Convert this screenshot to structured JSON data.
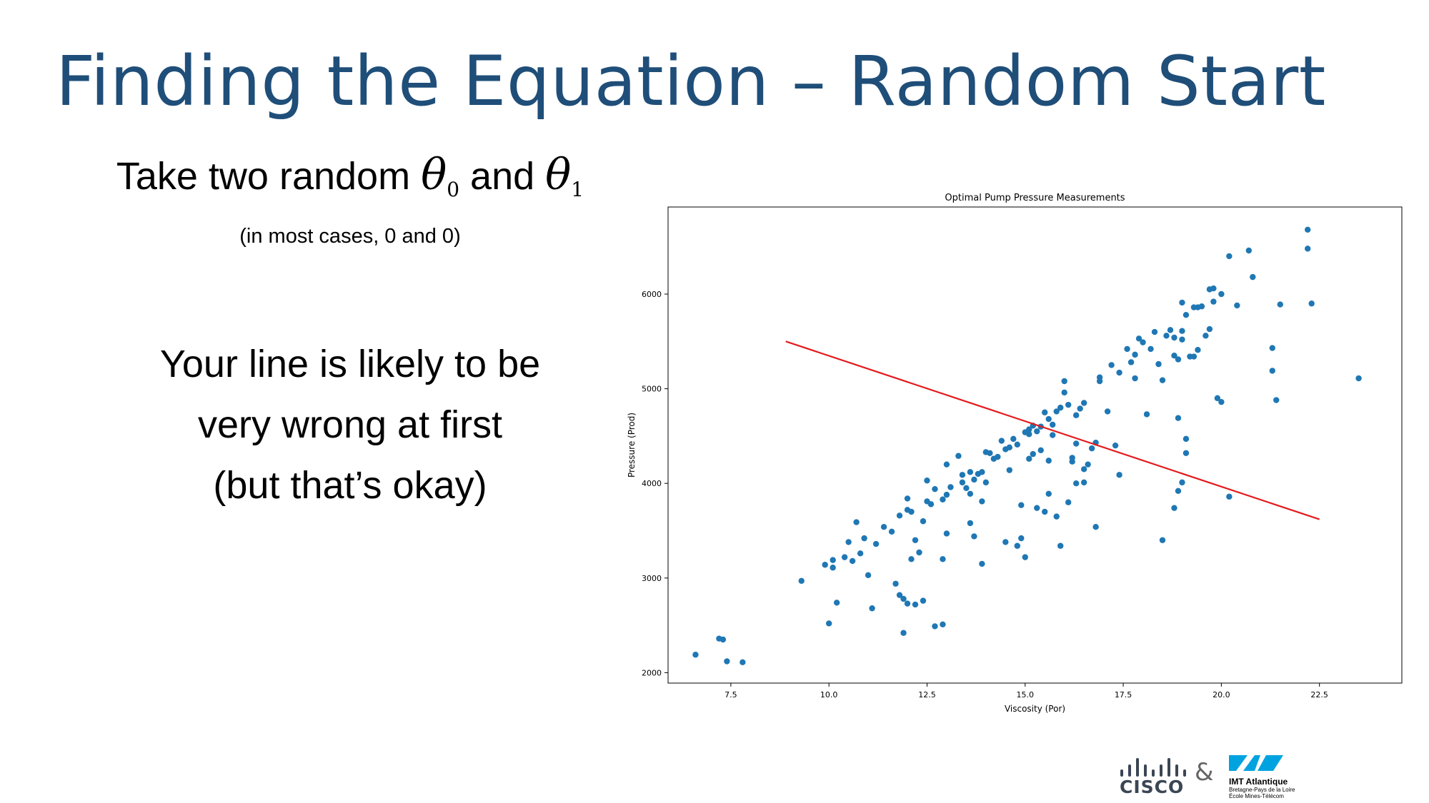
{
  "slide": {
    "title": "Finding the Equation – Random Start",
    "heading": {
      "pre": "Take two random",
      "theta_symbol": "θ",
      "sub0": "0",
      "mid": "and",
      "sub1": "1"
    },
    "note": "(in most cases, 0 and 0)",
    "body_lines": [
      "Your line is likely to be",
      "very wrong at first",
      "(but that’s okay)"
    ]
  },
  "logos": {
    "cisco": "CISCO",
    "ampersand": "&",
    "imt_name": "IMT Atlantique",
    "imt_sub1": "Bretagne-Pays de la Loire",
    "imt_sub2": "École Mines-Télécom"
  },
  "colors": {
    "title": "#1f4e79",
    "points": "#1f77b4",
    "line": "#e41a1c",
    "cisco": "#3b4654",
    "imt": "#00a3e0"
  },
  "chart_data": {
    "type": "scatter",
    "title": "Optimal Pump Pressure Measurements",
    "xlabel": "Viscosity (Por)",
    "ylabel": "Pressure (Prod)",
    "xlim": [
      5.9,
      24.6
    ],
    "ylim": [
      1890,
      6920
    ],
    "xticks": [
      7.5,
      10.0,
      12.5,
      15.0,
      17.5,
      20.0,
      22.5
    ],
    "yticks": [
      2000,
      3000,
      4000,
      5000,
      6000
    ],
    "grid": false,
    "fit_line": {
      "x": [
        8.9,
        22.5
      ],
      "y": [
        5500,
        3620
      ]
    },
    "points": [
      [
        6.6,
        2190
      ],
      [
        7.2,
        2360
      ],
      [
        7.3,
        2350
      ],
      [
        7.4,
        2120
      ],
      [
        7.8,
        2110
      ],
      [
        9.3,
        2970
      ],
      [
        9.9,
        3140
      ],
      [
        10.0,
        2520
      ],
      [
        10.1,
        3190
      ],
      [
        10.1,
        3110
      ],
      [
        10.2,
        2740
      ],
      [
        10.4,
        3220
      ],
      [
        10.5,
        3380
      ],
      [
        10.6,
        3180
      ],
      [
        10.7,
        3590
      ],
      [
        10.8,
        3260
      ],
      [
        10.9,
        3420
      ],
      [
        11.0,
        3030
      ],
      [
        11.1,
        2680
      ],
      [
        11.2,
        3360
      ],
      [
        11.4,
        3540
      ],
      [
        11.6,
        3490
      ],
      [
        11.7,
        2940
      ],
      [
        11.8,
        2820
      ],
      [
        11.8,
        3660
      ],
      [
        11.9,
        2780
      ],
      [
        11.9,
        2420
      ],
      [
        12.0,
        2730
      ],
      [
        12.0,
        3720
      ],
      [
        12.0,
        3840
      ],
      [
        12.1,
        3200
      ],
      [
        12.1,
        3700
      ],
      [
        12.2,
        2720
      ],
      [
        12.2,
        3400
      ],
      [
        12.3,
        3270
      ],
      [
        12.4,
        2760
      ],
      [
        12.4,
        3600
      ],
      [
        12.5,
        3810
      ],
      [
        12.5,
        4030
      ],
      [
        12.6,
        3780
      ],
      [
        12.7,
        2490
      ],
      [
        12.7,
        3940
      ],
      [
        12.9,
        2510
      ],
      [
        12.9,
        3200
      ],
      [
        12.9,
        3830
      ],
      [
        13.0,
        3470
      ],
      [
        13.0,
        3880
      ],
      [
        13.0,
        4200
      ],
      [
        13.1,
        3960
      ],
      [
        13.3,
        4290
      ],
      [
        13.4,
        4010
      ],
      [
        13.4,
        4090
      ],
      [
        13.5,
        3950
      ],
      [
        13.6,
        4120
      ],
      [
        13.6,
        3890
      ],
      [
        13.6,
        3580
      ],
      [
        13.7,
        3440
      ],
      [
        13.7,
        4040
      ],
      [
        13.8,
        4100
      ],
      [
        13.9,
        3150
      ],
      [
        13.9,
        3810
      ],
      [
        13.9,
        4120
      ],
      [
        14.0,
        4010
      ],
      [
        14.0,
        4330
      ],
      [
        14.1,
        4320
      ],
      [
        14.2,
        4260
      ],
      [
        14.3,
        4280
      ],
      [
        14.4,
        4450
      ],
      [
        14.5,
        4360
      ],
      [
        14.5,
        3380
      ],
      [
        14.6,
        4380
      ],
      [
        14.6,
        4140
      ],
      [
        14.7,
        4470
      ],
      [
        14.8,
        4410
      ],
      [
        14.8,
        3340
      ],
      [
        14.9,
        3420
      ],
      [
        14.9,
        3770
      ],
      [
        15.0,
        3220
      ],
      [
        15.0,
        4540
      ],
      [
        15.1,
        4570
      ],
      [
        15.1,
        4520
      ],
      [
        15.1,
        4260
      ],
      [
        15.2,
        4310
      ],
      [
        15.2,
        4610
      ],
      [
        15.3,
        4550
      ],
      [
        15.3,
        3740
      ],
      [
        15.4,
        4350
      ],
      [
        15.4,
        4600
      ],
      [
        15.5,
        4750
      ],
      [
        15.5,
        3700
      ],
      [
        15.6,
        4680
      ],
      [
        15.6,
        3890
      ],
      [
        15.6,
        4240
      ],
      [
        15.7,
        4620
      ],
      [
        15.7,
        4510
      ],
      [
        15.8,
        3650
      ],
      [
        15.8,
        4760
      ],
      [
        15.9,
        3340
      ],
      [
        15.9,
        4800
      ],
      [
        16.0,
        4960
      ],
      [
        16.0,
        5080
      ],
      [
        16.1,
        4830
      ],
      [
        16.1,
        3800
      ],
      [
        16.2,
        4270
      ],
      [
        16.2,
        4230
      ],
      [
        16.3,
        4720
      ],
      [
        16.3,
        4420
      ],
      [
        16.3,
        4000
      ],
      [
        16.4,
        4790
      ],
      [
        16.5,
        4010
      ],
      [
        16.5,
        4150
      ],
      [
        16.5,
        4850
      ],
      [
        16.6,
        4200
      ],
      [
        16.7,
        4370
      ],
      [
        16.8,
        3540
      ],
      [
        16.8,
        4430
      ],
      [
        16.9,
        5120
      ],
      [
        16.9,
        5080
      ],
      [
        17.1,
        4760
      ],
      [
        17.2,
        5250
      ],
      [
        17.3,
        4400
      ],
      [
        17.4,
        4090
      ],
      [
        17.4,
        5170
      ],
      [
        17.6,
        5420
      ],
      [
        17.7,
        5280
      ],
      [
        17.8,
        5360
      ],
      [
        17.8,
        5110
      ],
      [
        17.9,
        5530
      ],
      [
        18.0,
        5490
      ],
      [
        18.1,
        4730
      ],
      [
        18.2,
        5420
      ],
      [
        18.3,
        5600
      ],
      [
        18.4,
        5260
      ],
      [
        18.5,
        5090
      ],
      [
        18.5,
        3400
      ],
      [
        18.6,
        5560
      ],
      [
        18.7,
        5620
      ],
      [
        18.8,
        5540
      ],
      [
        18.8,
        5350
      ],
      [
        18.8,
        3740
      ],
      [
        18.9,
        4690
      ],
      [
        18.9,
        3920
      ],
      [
        18.9,
        5310
      ],
      [
        19.0,
        4010
      ],
      [
        19.0,
        5610
      ],
      [
        19.0,
        5520
      ],
      [
        19.0,
        5910
      ],
      [
        19.1,
        5780
      ],
      [
        19.1,
        4470
      ],
      [
        19.1,
        4320
      ],
      [
        19.2,
        5340
      ],
      [
        19.3,
        5860
      ],
      [
        19.3,
        5340
      ],
      [
        19.4,
        5410
      ],
      [
        19.4,
        5860
      ],
      [
        19.5,
        5870
      ],
      [
        19.6,
        5560
      ],
      [
        19.7,
        5630
      ],
      [
        19.7,
        6050
      ],
      [
        19.8,
        6060
      ],
      [
        19.8,
        5920
      ],
      [
        19.9,
        4900
      ],
      [
        20.0,
        6000
      ],
      [
        20.0,
        4860
      ],
      [
        20.2,
        3860
      ],
      [
        20.2,
        6400
      ],
      [
        20.4,
        5880
      ],
      [
        20.7,
        6460
      ],
      [
        20.8,
        6180
      ],
      [
        21.3,
        5430
      ],
      [
        21.3,
        5190
      ],
      [
        21.4,
        4880
      ],
      [
        21.5,
        5890
      ],
      [
        22.2,
        6480
      ],
      [
        22.2,
        6680
      ],
      [
        22.3,
        5900
      ],
      [
        23.5,
        5110
      ]
    ]
  }
}
